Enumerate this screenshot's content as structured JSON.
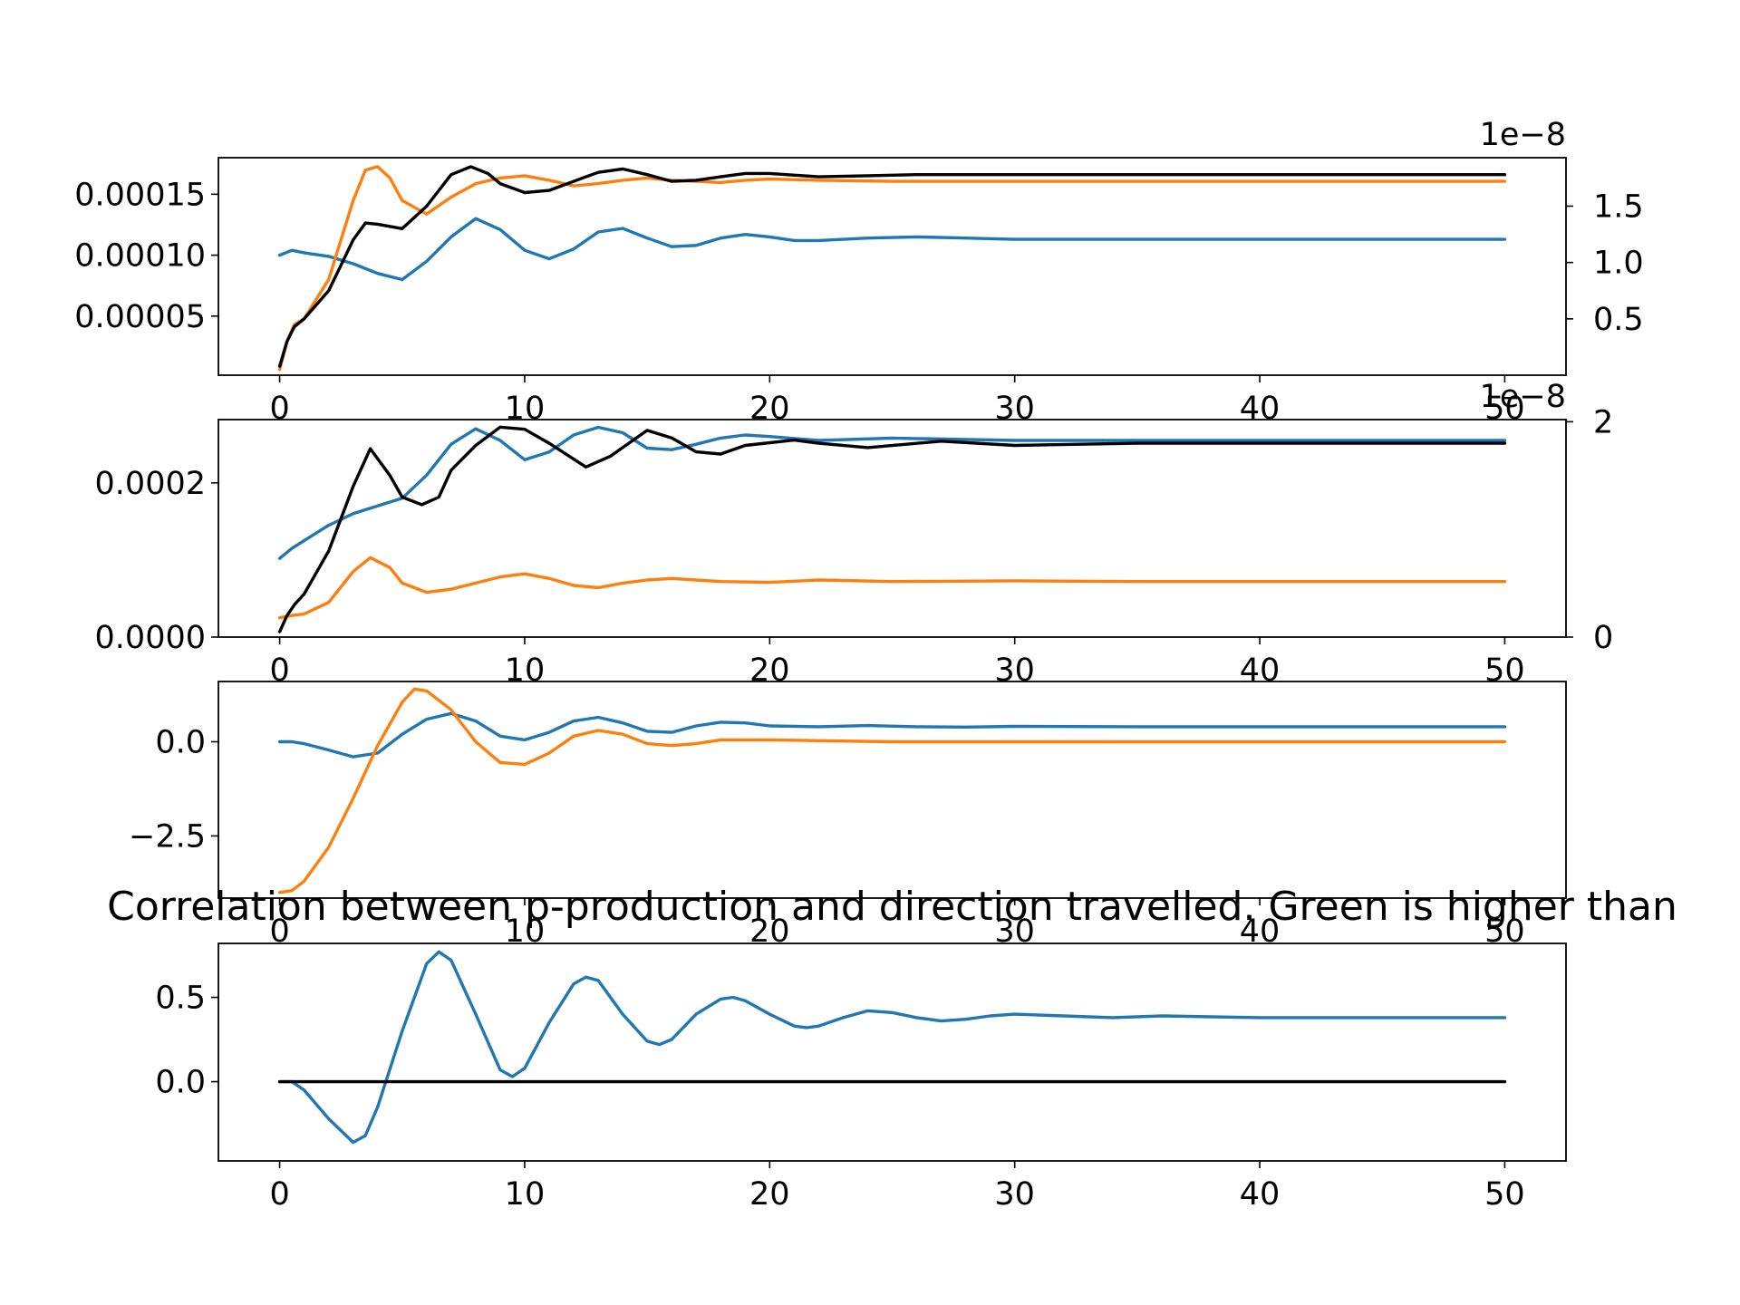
{
  "chart_data": [
    {
      "type": "line",
      "title": "",
      "xlim": [
        -2.5,
        52.5
      ],
      "ylim": [
        1.5e-06,
        0.00018
      ],
      "xticks": [
        0,
        10,
        20,
        30,
        40,
        50
      ],
      "yticks": [
        {
          "value": 5e-05,
          "label": "0.00005"
        },
        {
          "value": 0.0001,
          "label": "0.00010"
        },
        {
          "value": 0.00015,
          "label": "0.00015"
        }
      ],
      "right_axis": {
        "multiplier": "1e−8",
        "ylim": [
          0.0,
          1.93
        ],
        "yticks": [
          {
            "value": 0.5,
            "label": "0.5"
          },
          {
            "value": 1.0,
            "label": "1.0"
          },
          {
            "value": 1.5,
            "label": "1.5"
          }
        ]
      },
      "series": [
        {
          "axis": "left",
          "color": "#1f77b4",
          "x": [
            0,
            0.5,
            1,
            2,
            3,
            4,
            5,
            6,
            7,
            8,
            9,
            10,
            11,
            12,
            13,
            14,
            15,
            16,
            17,
            18,
            19,
            20,
            21,
            22,
            24,
            26,
            28,
            30,
            35,
            40,
            45,
            50
          ],
          "values": [
            0.0001,
            0.000104,
            0.000102,
            9.9e-05,
            9.3e-05,
            8.5e-05,
            8e-05,
            9.5e-05,
            0.000115,
            0.00013,
            0.000121,
            0.000104,
            9.7e-05,
            0.000105,
            0.000119,
            0.000122,
            0.000114,
            0.000107,
            0.000108,
            0.000114,
            0.000117,
            0.000115,
            0.000112,
            0.000112,
            0.000114,
            0.000115,
            0.000114,
            0.000113,
            0.000113,
            0.000113,
            0.000113,
            0.000113
          ]
        },
        {
          "axis": "right",
          "color": "#ff7f0e",
          "x": [
            0,
            0.3,
            0.6,
            1,
            2,
            3,
            3.5,
            4,
            4.5,
            5,
            6,
            7,
            8,
            9,
            10,
            11,
            12,
            13,
            14,
            15,
            16,
            17,
            18,
            19,
            20,
            22,
            25,
            30,
            35,
            40,
            45,
            50
          ],
          "values": [
            0.05,
            0.3,
            0.45,
            0.5,
            0.85,
            1.55,
            1.82,
            1.85,
            1.75,
            1.55,
            1.43,
            1.58,
            1.7,
            1.75,
            1.77,
            1.73,
            1.68,
            1.7,
            1.73,
            1.75,
            1.73,
            1.72,
            1.71,
            1.73,
            1.74,
            1.73,
            1.72,
            1.72,
            1.72,
            1.72,
            1.72,
            1.72
          ]
        },
        {
          "axis": "right",
          "color": "#000000",
          "x": [
            0,
            0.3,
            0.6,
            1,
            2,
            3,
            3.5,
            4,
            5,
            6,
            7,
            7.8,
            8.5,
            9,
            10,
            11,
            12,
            13,
            14,
            15,
            16,
            17,
            18,
            19,
            20,
            22,
            24,
            26,
            28,
            30,
            35,
            40,
            45,
            50
          ],
          "values": [
            0.08,
            0.3,
            0.43,
            0.5,
            0.75,
            1.2,
            1.35,
            1.34,
            1.3,
            1.5,
            1.78,
            1.85,
            1.79,
            1.7,
            1.62,
            1.64,
            1.72,
            1.8,
            1.83,
            1.78,
            1.72,
            1.73,
            1.76,
            1.79,
            1.79,
            1.76,
            1.77,
            1.78,
            1.78,
            1.78,
            1.78,
            1.78,
            1.78,
            1.78
          ]
        }
      ]
    },
    {
      "type": "line",
      "title": "",
      "xlim": [
        -2.5,
        52.5
      ],
      "ylim": [
        0.0,
        0.000282
      ],
      "xticks": [
        0,
        10,
        20,
        30,
        40,
        50
      ],
      "yticks": [
        {
          "value": 0.0,
          "label": "0.0000"
        },
        {
          "value": 0.0002,
          "label": "0.0002"
        }
      ],
      "right_axis": {
        "multiplier": "1e−8",
        "ylim": [
          0.0,
          2.02
        ],
        "yticks": [
          {
            "value": 0,
            "label": "0"
          },
          {
            "value": 2,
            "label": "2"
          }
        ]
      },
      "series": [
        {
          "axis": "left",
          "color": "#1f77b4",
          "x": [
            0,
            0.5,
            1,
            2,
            3,
            4,
            5,
            6,
            7,
            8,
            9,
            10,
            11,
            12,
            13,
            14,
            15,
            16,
            17,
            18,
            19,
            20,
            22,
            25,
            30,
            35,
            40,
            45,
            50
          ],
          "values": [
            0.000102,
            0.000115,
            0.000125,
            0.000145,
            0.00016,
            0.00017,
            0.00018,
            0.00021,
            0.00025,
            0.00027,
            0.000255,
            0.00023,
            0.00024,
            0.000262,
            0.000272,
            0.000265,
            0.000245,
            0.000243,
            0.00025,
            0.000258,
            0.000262,
            0.00026,
            0.000255,
            0.000258,
            0.000255,
            0.000255,
            0.000255,
            0.000255,
            0.000255
          ]
        },
        {
          "axis": "left",
          "color": "#ff7f0e",
          "x": [
            0,
            0.5,
            1,
            2,
            3,
            3.7,
            4.5,
            5,
            6,
            7,
            8,
            9,
            10,
            11,
            12,
            13,
            14,
            15,
            16,
            18,
            20,
            22,
            25,
            30,
            35,
            40,
            45,
            50
          ],
          "values": [
            2.5e-05,
            2.8e-05,
            3e-05,
            4.5e-05,
            8.5e-05,
            0.000103,
            9e-05,
            7e-05,
            5.8e-05,
            6.2e-05,
            7e-05,
            7.8e-05,
            8.2e-05,
            7.6e-05,
            6.7e-05,
            6.4e-05,
            7e-05,
            7.4e-05,
            7.6e-05,
            7.2e-05,
            7.1e-05,
            7.4e-05,
            7.2e-05,
            7.3e-05,
            7.2e-05,
            7.2e-05,
            7.2e-05,
            7.2e-05
          ]
        },
        {
          "axis": "right",
          "color": "#000000",
          "x": [
            0,
            0.3,
            0.6,
            1,
            2,
            3,
            3.7,
            4.5,
            5,
            5.8,
            6.5,
            7,
            8,
            9,
            10,
            11,
            12.5,
            13.5,
            15,
            16,
            17,
            18,
            19,
            21,
            22,
            24,
            27,
            30,
            35,
            40,
            45,
            50
          ],
          "values": [
            0.05,
            0.2,
            0.3,
            0.4,
            0.8,
            1.4,
            1.75,
            1.5,
            1.3,
            1.23,
            1.3,
            1.55,
            1.78,
            1.95,
            1.93,
            1.8,
            1.58,
            1.68,
            1.92,
            1.85,
            1.72,
            1.7,
            1.78,
            1.83,
            1.8,
            1.76,
            1.82,
            1.78,
            1.8,
            1.8,
            1.8,
            1.8
          ]
        }
      ]
    },
    {
      "type": "line",
      "title": "",
      "xlim": [
        -2.5,
        52.5
      ],
      "ylim": [
        -4.15,
        1.6
      ],
      "xticks": [
        0,
        10,
        20,
        30,
        40,
        50
      ],
      "yticks": [
        {
          "value": -2.5,
          "label": "−2.5"
        },
        {
          "value": 0.0,
          "label": "0.0"
        }
      ],
      "series": [
        {
          "color": "#1f77b4",
          "x": [
            0,
            0.5,
            1,
            2,
            3,
            4,
            5,
            6,
            7,
            8,
            9,
            10,
            11,
            12,
            13,
            14,
            15,
            16,
            17,
            18,
            19,
            20,
            22,
            24,
            26,
            28,
            30,
            35,
            40,
            45,
            50
          ],
          "values": [
            0.0,
            0.0,
            -0.05,
            -0.22,
            -0.4,
            -0.3,
            0.2,
            0.6,
            0.75,
            0.55,
            0.15,
            0.05,
            0.25,
            0.55,
            0.65,
            0.5,
            0.28,
            0.25,
            0.42,
            0.52,
            0.5,
            0.42,
            0.4,
            0.43,
            0.4,
            0.39,
            0.41,
            0.4,
            0.4,
            0.4,
            0.4
          ]
        },
        {
          "color": "#ff7f0e",
          "x": [
            0,
            0.5,
            1,
            2,
            3,
            4,
            5,
            5.5,
            6,
            7,
            8,
            9,
            10,
            11,
            12,
            13,
            14,
            15,
            16,
            17,
            18,
            20,
            22,
            25,
            30,
            35,
            40,
            45,
            50
          ],
          "values": [
            -4.0,
            -3.95,
            -3.7,
            -2.8,
            -1.5,
            -0.1,
            1.05,
            1.4,
            1.35,
            0.85,
            0.0,
            -0.55,
            -0.6,
            -0.3,
            0.15,
            0.3,
            0.2,
            -0.05,
            -0.1,
            -0.05,
            0.05,
            0.05,
            0.03,
            0.0,
            0.0,
            0.0,
            0.0,
            0.0,
            0.0
          ]
        }
      ]
    },
    {
      "type": "line",
      "title": "Correlation between p-production and direction travelled. Green is higher than",
      "xlim": [
        -2.5,
        52.5
      ],
      "ylim": [
        -0.47,
        0.82
      ],
      "xticks": [
        0,
        10,
        20,
        30,
        40,
        50
      ],
      "yticks": [
        {
          "value": 0.0,
          "label": "0.0"
        },
        {
          "value": 0.5,
          "label": "0.5"
        }
      ],
      "series": [
        {
          "color": "#1f77b4",
          "x": [
            0,
            0.5,
            1,
            2,
            3,
            3.5,
            4,
            5,
            6,
            6.5,
            7,
            8,
            9,
            9.5,
            10,
            11,
            12,
            12.5,
            13,
            14,
            15,
            15.5,
            16,
            17,
            18,
            18.5,
            19,
            20,
            21,
            21.5,
            22,
            23,
            24,
            25,
            26,
            27,
            28,
            29,
            30,
            32,
            34,
            36,
            40,
            45,
            50
          ],
          "values": [
            0.0,
            0.0,
            -0.05,
            -0.22,
            -0.36,
            -0.32,
            -0.15,
            0.3,
            0.7,
            0.77,
            0.72,
            0.4,
            0.07,
            0.03,
            0.08,
            0.35,
            0.58,
            0.62,
            0.6,
            0.4,
            0.24,
            0.22,
            0.25,
            0.4,
            0.49,
            0.5,
            0.48,
            0.4,
            0.33,
            0.32,
            0.33,
            0.38,
            0.42,
            0.41,
            0.38,
            0.36,
            0.37,
            0.39,
            0.4,
            0.39,
            0.38,
            0.39,
            0.38,
            0.38,
            0.38
          ]
        },
        {
          "color": "#000000",
          "x": [
            0,
            50
          ],
          "values": [
            0.0,
            0.0
          ]
        }
      ]
    }
  ]
}
